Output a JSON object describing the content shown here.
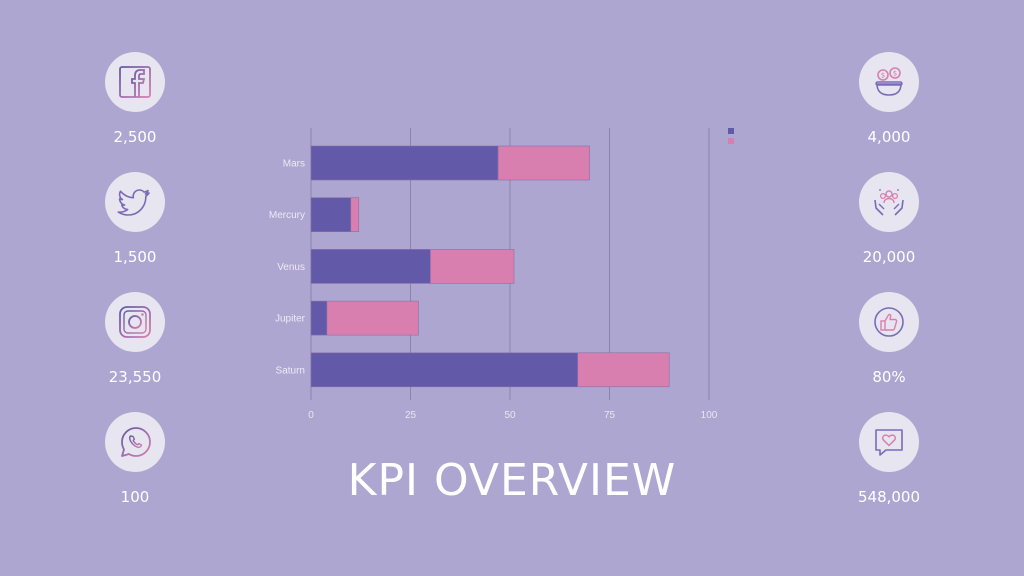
{
  "title": "KPI OVERVIEW",
  "colors": {
    "background": "#ada6d1",
    "series_1": "#625aa8",
    "series_2": "#d97fb0",
    "grid": "#8a84a8",
    "icon_circle": "#e7e5ef"
  },
  "left_kpis": [
    {
      "icon": "facebook-icon",
      "value": "2,500"
    },
    {
      "icon": "twitter-icon",
      "value": "1,500"
    },
    {
      "icon": "instagram-icon",
      "value": "23,550"
    },
    {
      "icon": "whatsapp-icon",
      "value": "100"
    }
  ],
  "right_kpis": [
    {
      "icon": "money-bag-icon",
      "value": "4,000"
    },
    {
      "icon": "community-hands-icon",
      "value": "20,000"
    },
    {
      "icon": "thumbs-up-icon",
      "value": "80%"
    },
    {
      "icon": "heart-message-icon",
      "value": "548,000"
    }
  ],
  "chart_data": {
    "type": "bar",
    "orientation": "horizontal",
    "stacked": true,
    "categories": [
      "Mars",
      "Mercury",
      "Venus",
      "Jupiter",
      "Saturn"
    ],
    "series": [
      {
        "values": [
          47,
          10,
          30,
          4,
          67
        ],
        "color": "#625aa8"
      },
      {
        "values": [
          23,
          2,
          21,
          23,
          23
        ],
        "color": "#d97fb0"
      }
    ],
    "xlim": [
      0,
      100
    ],
    "xticks": [
      0,
      25,
      50,
      75,
      100
    ],
    "grid": true,
    "legend": "top-right"
  }
}
